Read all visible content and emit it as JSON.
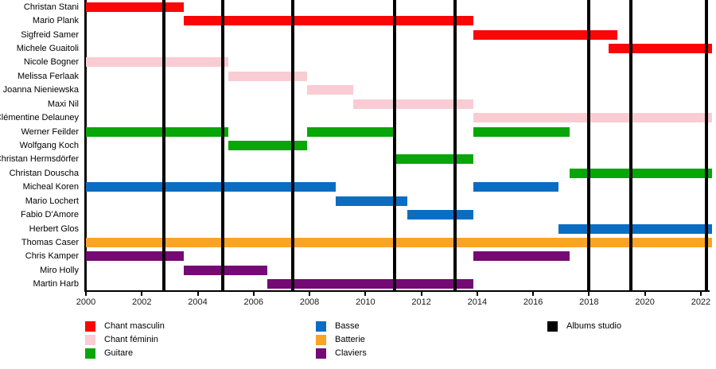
{
  "chart_data": {
    "type": "timeline",
    "title": "",
    "x_axis": {
      "min": 2000,
      "max": 2022.4,
      "tick_years": [
        2000,
        2002,
        2004,
        2006,
        2008,
        2010,
        2012,
        2014,
        2016,
        2018,
        2020,
        2022
      ]
    },
    "album_studio_years": [
      2002.8,
      2004.9,
      2007.4,
      2011.05,
      2013.2,
      2018.0,
      2019.5,
      2022.2
    ],
    "albums_color": "#000000",
    "roles": [
      {
        "name": "Chant masculin",
        "color": "#fa0606"
      },
      {
        "name": "Chant féminin",
        "color": "#f9ccd3"
      },
      {
        "name": "Guitare",
        "color": "#09a609"
      },
      {
        "name": "Basse",
        "color": "#0b6dc2"
      },
      {
        "name": "Batterie",
        "color": "#fba325"
      },
      {
        "name": "Claviers",
        "color": "#750a75"
      }
    ],
    "members": [
      {
        "name": "Christan Stani",
        "role": "Chant masculin",
        "periods": [
          [
            2000.0,
            2003.5
          ]
        ]
      },
      {
        "name": "Mario Plank",
        "role": "Chant masculin",
        "periods": [
          [
            2003.5,
            2013.85
          ]
        ]
      },
      {
        "name": "Sigfreid Samer",
        "role": "Chant masculin",
        "periods": [
          [
            2013.85,
            2019.0
          ]
        ]
      },
      {
        "name": "Michele Guaitoli",
        "role": "Chant masculin",
        "periods": [
          [
            2018.7,
            2022.4
          ]
        ]
      },
      {
        "name": "Nicole Bogner",
        "role": "Chant féminin",
        "periods": [
          [
            2000.0,
            2005.1
          ]
        ]
      },
      {
        "name": "Melissa Ferlaak",
        "role": "Chant féminin",
        "periods": [
          [
            2005.1,
            2007.9
          ]
        ]
      },
      {
        "name": "Joanna Nieniewska",
        "role": "Chant féminin",
        "periods": [
          [
            2007.9,
            2009.55
          ]
        ]
      },
      {
        "name": "Maxi Nil",
        "role": "Chant féminin",
        "periods": [
          [
            2009.55,
            2013.85
          ]
        ]
      },
      {
        "name": "Clémentine Delauney",
        "role": "Chant féminin",
        "periods": [
          [
            2013.85,
            2022.4
          ]
        ]
      },
      {
        "name": "Werner Feilder",
        "role": "Guitare",
        "periods": [
          [
            2000.0,
            2005.1
          ],
          [
            2007.9,
            2011.0
          ],
          [
            2013.85,
            2017.3
          ]
        ]
      },
      {
        "name": "Wolfgang Koch",
        "role": "Guitare",
        "periods": [
          [
            2005.1,
            2007.9
          ]
        ]
      },
      {
        "name": "Christan Hermsdörfer",
        "role": "Guitare",
        "periods": [
          [
            2011.0,
            2013.85
          ]
        ]
      },
      {
        "name": "Christan Douscha",
        "role": "Guitare",
        "periods": [
          [
            2017.3,
            2022.4
          ]
        ]
      },
      {
        "name": "Micheal Koren",
        "role": "Basse",
        "periods": [
          [
            2000.0,
            2008.95
          ],
          [
            2013.85,
            2016.9
          ]
        ]
      },
      {
        "name": "Mario Lochert",
        "role": "Basse",
        "periods": [
          [
            2008.95,
            2011.5
          ]
        ]
      },
      {
        "name": "Fabio D'Amore",
        "role": "Basse",
        "periods": [
          [
            2011.5,
            2013.85
          ]
        ]
      },
      {
        "name": "Herbert Glos",
        "role": "Basse",
        "periods": [
          [
            2016.9,
            2022.4
          ]
        ]
      },
      {
        "name": "Thomas Caser",
        "role": "Batterie",
        "periods": [
          [
            2000.0,
            2022.4
          ]
        ]
      },
      {
        "name": "Chris Kamper",
        "role": "Claviers",
        "periods": [
          [
            2000.0,
            2003.5
          ],
          [
            2013.85,
            2017.3
          ]
        ]
      },
      {
        "name": "Miro Holly",
        "role": "Claviers",
        "periods": [
          [
            2003.5,
            2006.5
          ]
        ]
      },
      {
        "name": "Martin Harb",
        "role": "Claviers",
        "periods": [
          [
            2006.5,
            2013.85
          ]
        ]
      }
    ]
  },
  "legend": {
    "columns": [
      [
        {
          "label": "Chant masculin",
          "color": "#fa0606"
        },
        {
          "label": "Chant féminin",
          "color": "#f9ccd3"
        },
        {
          "label": "Guitare",
          "color": "#09a609"
        }
      ],
      [
        {
          "label": "Basse",
          "color": "#0b6dc2"
        },
        {
          "label": "Batterie",
          "color": "#fba325"
        },
        {
          "label": "Claviers",
          "color": "#750a75"
        }
      ],
      [
        {
          "label": "Albums studio",
          "color": "#000000"
        }
      ]
    ]
  }
}
